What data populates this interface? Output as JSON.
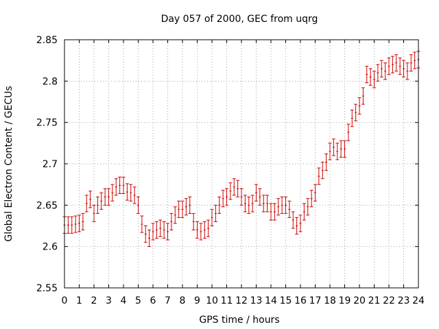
{
  "chart_data": {
    "type": "line",
    "title": "Day 057 of 2000, GEC from uqrg",
    "xlabel": "GPS time / hours",
    "ylabel": "Global Electron Content / GECUs",
    "xlim": [
      0,
      24
    ],
    "ylim": [
      2.55,
      2.85
    ],
    "grid": true,
    "series_color": "#cc0000",
    "x_ticks": [
      "0",
      "1",
      "2",
      "3",
      "4",
      "5",
      "6",
      "7",
      "8",
      "9",
      "10",
      "11",
      "12",
      "13",
      "14",
      "15",
      "16",
      "17",
      "18",
      "19",
      "20",
      "21",
      "22",
      "23",
      "24"
    ],
    "y_ticks": [
      "2.55",
      "2.6",
      "2.65",
      "2.7",
      "2.75",
      "2.8",
      "2.85"
    ],
    "series": [
      {
        "name": "GEC",
        "error": 0.01,
        "x": [
          0.0,
          0.25,
          0.5,
          0.75,
          1.0,
          1.25,
          1.5,
          1.75,
          2.0,
          2.25,
          2.5,
          2.75,
          3.0,
          3.25,
          3.5,
          3.75,
          4.0,
          4.25,
          4.5,
          4.75,
          5.0,
          5.25,
          5.5,
          5.75,
          6.0,
          6.25,
          6.5,
          6.75,
          7.0,
          7.25,
          7.5,
          7.75,
          8.0,
          8.25,
          8.5,
          8.75,
          9.0,
          9.25,
          9.5,
          9.75,
          10.0,
          10.25,
          10.5,
          10.75,
          11.0,
          11.25,
          11.5,
          11.75,
          12.0,
          12.25,
          12.5,
          12.75,
          13.0,
          13.25,
          13.5,
          13.75,
          14.0,
          14.25,
          14.5,
          14.75,
          15.0,
          15.25,
          15.5,
          15.75,
          16.0,
          16.25,
          16.5,
          16.75,
          17.0,
          17.25,
          17.5,
          17.75,
          18.0,
          18.25,
          18.5,
          18.75,
          19.0,
          19.25,
          19.5,
          19.75,
          20.0,
          20.25,
          20.5,
          20.75,
          21.0,
          21.25,
          21.5,
          21.75,
          22.0,
          22.25,
          22.5,
          22.75,
          23.0,
          23.25,
          23.5,
          23.75,
          24.0
        ],
        "values": [
          2.626,
          2.626,
          2.626,
          2.627,
          2.628,
          2.63,
          2.652,
          2.657,
          2.64,
          2.65,
          2.655,
          2.66,
          2.66,
          2.665,
          2.672,
          2.674,
          2.674,
          2.666,
          2.665,
          2.662,
          2.65,
          2.627,
          2.615,
          2.61,
          2.618,
          2.62,
          2.622,
          2.62,
          2.618,
          2.63,
          2.638,
          2.645,
          2.645,
          2.648,
          2.65,
          2.63,
          2.62,
          2.618,
          2.62,
          2.622,
          2.635,
          2.64,
          2.65,
          2.658,
          2.66,
          2.667,
          2.672,
          2.67,
          2.66,
          2.652,
          2.65,
          2.652,
          2.665,
          2.66,
          2.652,
          2.652,
          2.642,
          2.642,
          2.648,
          2.65,
          2.65,
          2.645,
          2.632,
          2.625,
          2.628,
          2.642,
          2.648,
          2.658,
          2.665,
          2.685,
          2.692,
          2.702,
          2.715,
          2.72,
          2.715,
          2.718,
          2.718,
          2.738,
          2.755,
          2.762,
          2.77,
          2.782,
          2.808,
          2.805,
          2.802,
          2.81,
          2.815,
          2.812,
          2.818,
          2.82,
          2.822,
          2.818,
          2.815,
          2.812,
          2.822,
          2.825,
          2.826
        ]
      }
    ]
  }
}
